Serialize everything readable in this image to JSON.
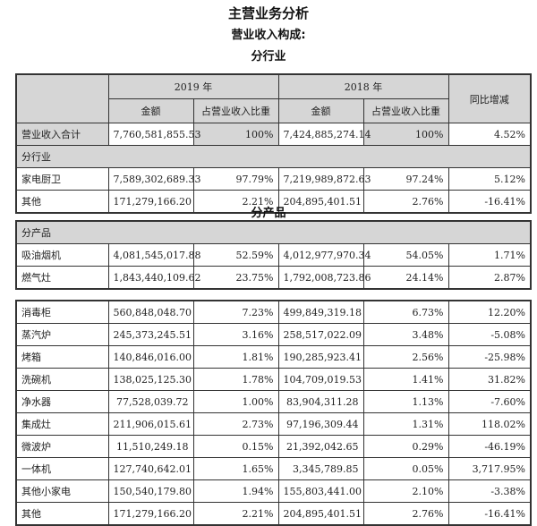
{
  "titles": {
    "main": "主营业务分析",
    "sub": "营业收入构成:",
    "industry": "分行业",
    "product": "分产品"
  },
  "header": {
    "y2019": "2019 年",
    "y2018": "2018 年",
    "amount": "金额",
    "share": "占营业收入比重",
    "yoy": "同比增减"
  },
  "total": {
    "label": "营业收入合计",
    "a2019": "7,760,581,855.53",
    "s2019": "100%",
    "a2018": "7,424,885,274.14",
    "s2018": "100%",
    "yoy": "4.52%"
  },
  "industry_section": "分行业",
  "industry_rows": [
    [
      "家电厨卫",
      "7,589,302,689.33",
      "97.79%",
      "7,219,989,872.63",
      "97.24%",
      "5.12%"
    ],
    [
      "其他",
      "171,279,166.20",
      "2.21%",
      "204,895,401.51",
      "2.76%",
      "-16.41%"
    ]
  ],
  "product_section": "分产品",
  "product_rows_a": [
    [
      "吸油烟机",
      "4,081,545,017.88",
      "52.59%",
      "4,012,977,970.34",
      "54.05%",
      "1.71%"
    ],
    [
      "燃气灶",
      "1,843,440,109.62",
      "23.75%",
      "1,792,008,723.86",
      "24.14%",
      "2.87%"
    ]
  ],
  "product_rows_b": [
    [
      "消毒柜",
      "560,848,048.70",
      "7.23%",
      "499,849,319.18",
      "6.73%",
      "12.20%"
    ],
    [
      "蒸汽炉",
      "245,373,245.51",
      "3.16%",
      "258,517,022.09",
      "3.48%",
      "-5.08%"
    ],
    [
      "烤箱",
      "140,846,016.00",
      "1.81%",
      "190,285,923.41",
      "2.56%",
      "-25.98%"
    ],
    [
      "洗碗机",
      "138,025,125.30",
      "1.78%",
      "104,709,019.53",
      "1.41%",
      "31.82%"
    ],
    [
      "净水器",
      "77,528,039.72",
      "1.00%",
      "83,904,311.28",
      "1.13%",
      "-7.60%"
    ],
    [
      "集成灶",
      "211,906,015.61",
      "2.73%",
      "97,196,309.44",
      "1.31%",
      "118.02%"
    ],
    [
      "微波炉",
      "11,510,249.18",
      "0.15%",
      "21,392,042.65",
      "0.29%",
      "-46.19%"
    ],
    [
      "一体机",
      "127,740,642.01",
      "1.65%",
      "3,345,789.85",
      "0.05%",
      "3,717.95%"
    ],
    [
      "其他小家电",
      "150,540,179.80",
      "1.94%",
      "155,803,441.00",
      "2.10%",
      "-3.38%"
    ],
    [
      "其他",
      "171,279,166.20",
      "2.21%",
      "204,895,401.51",
      "2.76%",
      "-16.41%"
    ]
  ]
}
